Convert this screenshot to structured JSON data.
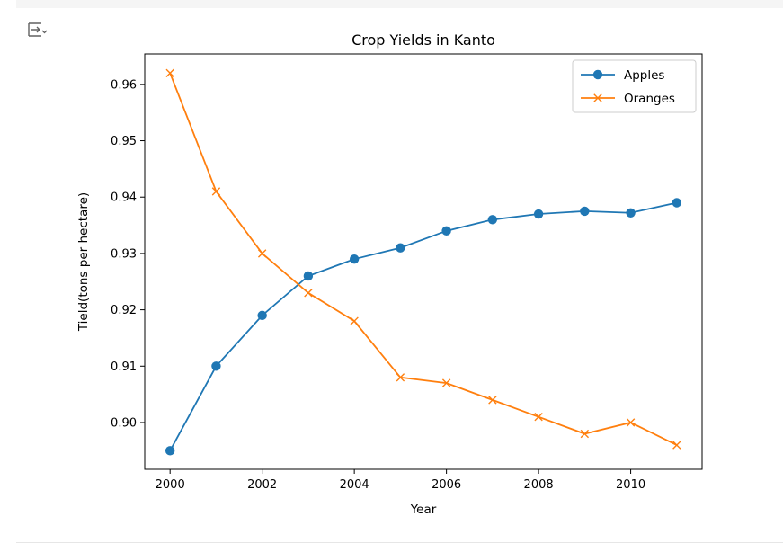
{
  "toolbar": {
    "output_icon": "output-collapse-icon"
  },
  "chart_data": {
    "type": "line",
    "title": "Crop Yields in Kanto",
    "xlabel": "Year",
    "ylabel": "Tield(tons per hectare)",
    "xlim": [
      1999.45,
      2011.55
    ],
    "ylim": [
      0.8917,
      0.9654
    ],
    "xticks": [
      2000,
      2002,
      2004,
      2006,
      2008,
      2010
    ],
    "yticks": [
      0.9,
      0.91,
      0.92,
      0.93,
      0.94,
      0.95,
      0.96
    ],
    "ytick_labels": [
      "0.90",
      "0.91",
      "0.92",
      "0.93",
      "0.94",
      "0.95",
      "0.96"
    ],
    "grid": false,
    "legend_position": "top-right",
    "x": [
      2000,
      2001,
      2002,
      2003,
      2004,
      2005,
      2006,
      2007,
      2008,
      2009,
      2010,
      2011
    ],
    "series": [
      {
        "name": "Apples",
        "marker": "circle",
        "color": "#1f77b4",
        "values": [
          0.895,
          0.91,
          0.919,
          0.926,
          0.929,
          0.931,
          0.934,
          0.936,
          0.937,
          0.9375,
          0.9372,
          0.939
        ]
      },
      {
        "name": "Oranges",
        "marker": "x",
        "color": "#ff7f0e",
        "values": [
          0.962,
          0.941,
          0.93,
          0.923,
          0.918,
          0.908,
          0.907,
          0.904,
          0.901,
          0.898,
          0.9,
          0.896
        ]
      }
    ]
  }
}
